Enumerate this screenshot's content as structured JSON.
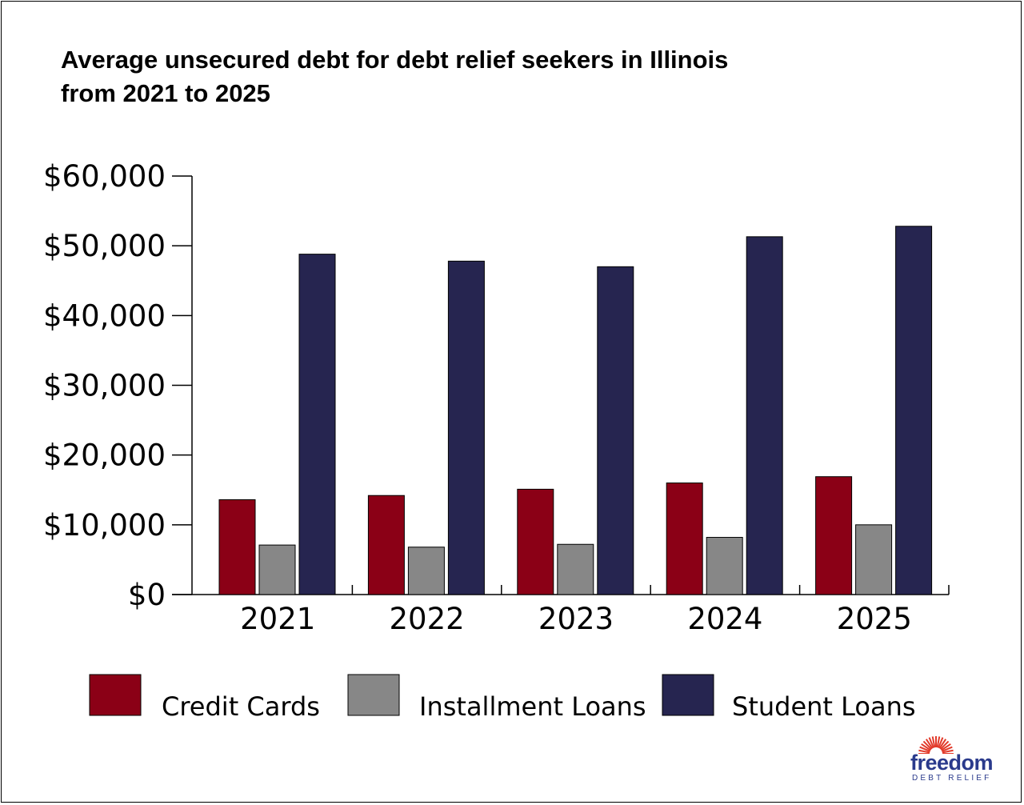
{
  "title_line1": "Average unsecured debt for debt relief seekers in Illinois",
  "title_line2": "from 2021 to 2025",
  "logo": {
    "word": "freedom",
    "sub": "DEBT RELIEF"
  },
  "chart_data": {
    "type": "bar",
    "title": "Average unsecured debt for debt relief seekers in Illinois from 2021 to 2025",
    "xlabel": "",
    "ylabel": "",
    "categories": [
      "2021",
      "2022",
      "2023",
      "2024",
      "2025"
    ],
    "series": [
      {
        "name": "Credit Cards",
        "color": "#8b0016",
        "values": [
          13600,
          14200,
          15100,
          16000,
          16900
        ]
      },
      {
        "name": "Installment Loans",
        "color": "#878787",
        "values": [
          7100,
          6800,
          7200,
          8200,
          10000
        ]
      },
      {
        "name": "Student Loans",
        "color": "#262550",
        "values": [
          48800,
          47800,
          47000,
          51300,
          52800
        ]
      }
    ],
    "ylim": [
      0,
      60000
    ],
    "yticks": [
      0,
      10000,
      20000,
      30000,
      40000,
      50000,
      60000
    ],
    "ytick_labels": [
      "$0",
      "$10,000",
      "$20,000",
      "$30,000",
      "$40,000",
      "$50,000",
      "$60,000"
    ],
    "grid": false,
    "legend_position": "bottom"
  }
}
